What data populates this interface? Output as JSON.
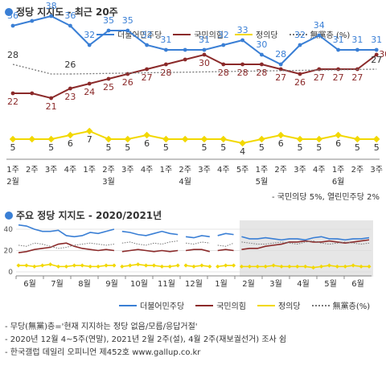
{
  "section1": {
    "title": "정당 지지도 - 최근 20주"
  },
  "section2": {
    "title": "주요 정당 지지도 - 2020/2021년"
  },
  "legend": [
    {
      "label": "더불어민주당",
      "color": "#3a7fd5",
      "style": "solid"
    },
    {
      "label": "국민의힘",
      "color": "#8b2a2a",
      "style": "solid"
    },
    {
      "label": "정의당",
      "color": "#f2d800",
      "style": "solid"
    },
    {
      "label": "無黨층 (%)",
      "color": "#777777",
      "style": "dotted"
    }
  ],
  "legend2": [
    {
      "label": "더불어민주당",
      "color": "#3a7fd5",
      "style": "solid"
    },
    {
      "label": "국민의힘",
      "color": "#8b2a2a",
      "style": "solid"
    },
    {
      "label": "정의당",
      "color": "#f2d800",
      "style": "solid"
    },
    {
      "label": "無黨층(%)",
      "color": "#777777",
      "style": "dotted"
    }
  ],
  "note": "- 국민의당 5%, 열린민주당 2%",
  "footnotes": [
    "- 무당(無黨)층='현재 지지하는 정당 없음/모름/응답거절'",
    "- 2020년 12월 4~5주(연말), 2021년 2월 2주(설), 4월 2주(재보궐선거) 조사 쉼",
    "- 한국갤럽 데일리 오피니언 제452호 www.gallup.co.kr"
  ],
  "chart_data": [
    {
      "type": "line",
      "title": "정당 지지도 - 최근 20주",
      "x": [
        "1주",
        "2주",
        "3주",
        "4주",
        "1주",
        "2주",
        "3주",
        "4주",
        "1주",
        "2주",
        "3주",
        "4주",
        "5주",
        "1주",
        "2주",
        "3주",
        "4주",
        "1주",
        "2주",
        "3주"
      ],
      "month_labels": [
        {
          "index": 0,
          "label": "2월"
        },
        {
          "index": 5,
          "label": "3월"
        },
        {
          "index": 9,
          "label": "4월"
        },
        {
          "index": 13,
          "label": "5월"
        },
        {
          "index": 17,
          "label": "6월"
        }
      ],
      "series": [
        {
          "name": "더불어민주당",
          "color": "#3a7fd5",
          "values": [
            36,
            37,
            38,
            36,
            32,
            35,
            35,
            32,
            31,
            31,
            31,
            32,
            33,
            30,
            28,
            32,
            34,
            31,
            31,
            31
          ]
        },
        {
          "name": "국민의힘",
          "color": "#8b2a2a",
          "values": [
            22,
            22,
            21,
            23,
            24,
            25,
            26,
            27,
            28,
            29,
            30,
            28,
            28,
            28,
            27,
            26,
            27,
            27,
            27,
            30
          ]
        },
        {
          "name": "정의당",
          "color": "#f2d800",
          "values": [
            5,
            5,
            5,
            6,
            7,
            5,
            5,
            6,
            5,
            5,
            5,
            5,
            4,
            5,
            6,
            5,
            5,
            6,
            5,
            5
          ]
        },
        {
          "name": "無黨층",
          "color": "#777777",
          "values": [
            28,
            27,
            26,
            26,
            null,
            null,
            null,
            null,
            null,
            null,
            null,
            null,
            null,
            null,
            null,
            null,
            null,
            null,
            null,
            27
          ]
        }
      ],
      "labels": {
        "더불어민주당": [
          36,
          null,
          38,
          36,
          32,
          35,
          35,
          32,
          31,
          null,
          31,
          32,
          33,
          30,
          28,
          32,
          34,
          31,
          31,
          31
        ],
        "국민의힘": [
          22,
          null,
          21,
          23,
          24,
          25,
          26,
          27,
          28,
          null,
          30,
          28,
          28,
          28,
          27,
          26,
          27,
          27,
          27,
          30
        ],
        "정의당": [
          5,
          null,
          5,
          6,
          7,
          5,
          5,
          6,
          5,
          null,
          5,
          5,
          4,
          5,
          6,
          5,
          5,
          6,
          5,
          5
        ],
        "無黨층": [
          28,
          null,
          null,
          26,
          null,
          null,
          null,
          null,
          null,
          null,
          null,
          null,
          null,
          null,
          null,
          null,
          null,
          null,
          null,
          27
        ]
      }
    },
    {
      "type": "line",
      "title": "주요 정당 지지도 - 2020/2021년",
      "ylim": [
        0,
        40
      ],
      "yticks": [
        0,
        20,
        40
      ],
      "months": [
        "6월",
        "7월",
        "8월",
        "9월",
        "10월",
        "11월",
        "12월",
        "1월",
        "2월",
        "3월",
        "4월",
        "5월",
        "6월"
      ],
      "series": [
        {
          "name": "더불어민주당",
          "color": "#3a7fd5",
          "values": [
            44,
            43,
            40,
            38,
            38,
            39,
            34,
            33,
            34,
            37,
            36,
            38,
            40,
            38,
            37,
            35,
            34,
            36,
            38,
            36,
            35,
            33,
            32,
            34,
            33,
            34,
            36,
            35,
            33,
            31,
            31,
            32,
            31,
            30,
            31,
            31,
            30,
            32,
            33,
            31,
            31,
            30,
            31,
            31,
            32
          ]
        },
        {
          "name": "국민의힘",
          "color": "#8b2a2a",
          "values": [
            18,
            19,
            21,
            22,
            23,
            26,
            27,
            24,
            22,
            21,
            20,
            21,
            20,
            19,
            20,
            21,
            20,
            19,
            20,
            19,
            20,
            20,
            21,
            21,
            19,
            20,
            21,
            20,
            21,
            22,
            22,
            24,
            25,
            26,
            28,
            28,
            29,
            28,
            28,
            29,
            28,
            27,
            28,
            29,
            30
          ]
        },
        {
          "name": "정의당",
          "color": "#f2d800",
          "values": [
            6,
            6,
            5,
            6,
            7,
            5,
            5,
            6,
            6,
            5,
            5,
            6,
            6,
            5,
            6,
            7,
            6,
            6,
            5,
            5,
            6,
            6,
            5,
            6,
            5,
            5,
            6,
            6,
            5,
            5,
            5,
            5,
            6,
            5,
            5,
            5,
            5,
            4,
            5,
            6,
            5,
            5,
            6,
            5,
            5
          ]
        },
        {
          "name": "無黨층",
          "color": "#777777",
          "values": [
            25,
            24,
            27,
            26,
            24,
            22,
            23,
            25,
            26,
            27,
            26,
            25,
            26,
            27,
            28,
            26,
            25,
            27,
            26,
            28,
            29,
            27,
            26,
            28,
            27,
            25,
            24,
            27,
            28,
            27,
            26,
            26,
            27,
            28,
            27,
            26,
            28,
            29,
            27,
            26,
            27,
            28,
            27,
            26,
            27
          ]
        }
      ]
    }
  ]
}
